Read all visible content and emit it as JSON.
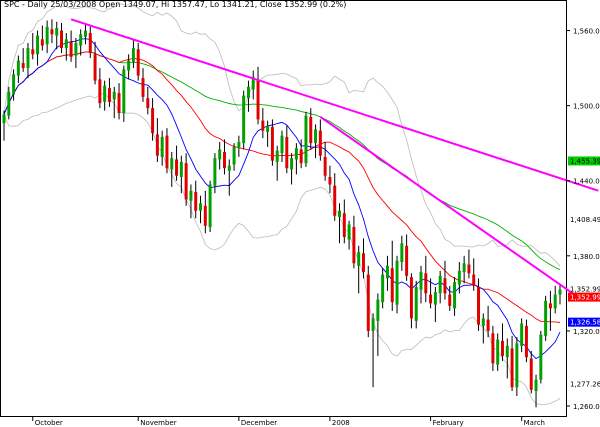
{
  "header": {
    "symbol": "SPC",
    "text": "SPC - Daily 25/03/2008 Open 1349.07, Hi 1357.47, Lo 1341.21, Close 1352.99 (0.2%)"
  },
  "colors": {
    "background": "#ffffff",
    "up_candle": "#00a000",
    "down_candle": "#e00000",
    "wick": "#000000",
    "trendline": "#ff00ff",
    "ma_short": "#0000ff",
    "ma_mid": "#ff0000",
    "ma_long": "#00b000",
    "bands": "#bbbbbb",
    "label_close_bg": "#ff0000",
    "label_ma_long_bg": "#00cc00",
    "label_ma_short_bg": "#0000ff"
  },
  "chart_data": {
    "type": "candlestick",
    "title": "SPC - Daily 25/03/2008 Open 1349.07, Hi 1357.47, Lo 1341.21, Close 1352.99 (0.2%)",
    "x_labels": [
      {
        "label": "October",
        "index": 6
      },
      {
        "label": "November",
        "index": 28
      },
      {
        "label": "December",
        "index": 49
      },
      {
        "label": "2008",
        "index": 68
      },
      {
        "label": "February",
        "index": 89
      },
      {
        "label": "March",
        "index": 108
      }
    ],
    "y_ticks": [
      1560,
      1500,
      1440,
      1380,
      1320,
      1260
    ],
    "ylim": [
      1252,
      1578
    ],
    "grid": false,
    "price_labels": [
      {
        "text": "1,455.39",
        "value": 1455.39,
        "style": "ma_long"
      },
      {
        "text": "1,408.49",
        "value": 1408.49,
        "style": "plain"
      },
      {
        "text": "1,352.99",
        "value": 1352.99,
        "style": "plain"
      },
      {
        "text": "1,352.99",
        "value": 1352.99,
        "style": "close"
      },
      {
        "text": "1,326.58",
        "value": 1326.58,
        "style": "ma_short"
      },
      {
        "text": "1,277.26",
        "value": 1277.26,
        "style": "plain"
      }
    ],
    "trendlines": [
      {
        "x1": 14,
        "y1": 1569,
        "x2": 124,
        "y2": 1432
      },
      {
        "x1": 66,
        "y1": 1491,
        "x2": 119,
        "y2": 1349
      }
    ],
    "candles": [
      [
        1486,
        1496,
        1472,
        1493
      ],
      [
        1492,
        1515,
        1489,
        1511
      ],
      [
        1509,
        1529,
        1504,
        1525
      ],
      [
        1524,
        1540,
        1518,
        1536
      ],
      [
        1534,
        1546,
        1527,
        1530
      ],
      [
        1530,
        1550,
        1522,
        1546
      ],
      [
        1545,
        1558,
        1537,
        1541
      ],
      [
        1541,
        1560,
        1532,
        1556
      ],
      [
        1553,
        1564,
        1544,
        1548
      ],
      [
        1549,
        1568,
        1542,
        1563
      ],
      [
        1561,
        1569,
        1550,
        1557
      ],
      [
        1556,
        1567,
        1545,
        1562
      ],
      [
        1560,
        1566,
        1542,
        1546
      ],
      [
        1546,
        1558,
        1536,
        1553
      ],
      [
        1551,
        1560,
        1535,
        1539
      ],
      [
        1540,
        1554,
        1530,
        1550
      ],
      [
        1548,
        1561,
        1540,
        1557
      ],
      [
        1555,
        1565,
        1549,
        1560
      ],
      [
        1558,
        1563,
        1538,
        1542
      ],
      [
        1541,
        1551,
        1517,
        1520
      ],
      [
        1521,
        1530,
        1498,
        1502
      ],
      [
        1503,
        1520,
        1496,
        1516
      ],
      [
        1514,
        1522,
        1499,
        1503
      ],
      [
        1505,
        1515,
        1490,
        1511
      ],
      [
        1510,
        1518,
        1489,
        1494
      ],
      [
        1494,
        1532,
        1487,
        1529
      ],
      [
        1528,
        1541,
        1521,
        1536
      ],
      [
        1535,
        1552,
        1530,
        1546
      ],
      [
        1545,
        1550,
        1520,
        1524
      ],
      [
        1522,
        1530,
        1503,
        1507
      ],
      [
        1506,
        1515,
        1493,
        1498
      ],
      [
        1498,
        1506,
        1472,
        1478
      ],
      [
        1477,
        1490,
        1455,
        1460
      ],
      [
        1459,
        1480,
        1452,
        1475
      ],
      [
        1476,
        1482,
        1446,
        1450
      ],
      [
        1449,
        1463,
        1435,
        1458
      ],
      [
        1457,
        1468,
        1440,
        1444
      ],
      [
        1443,
        1460,
        1430,
        1455
      ],
      [
        1454,
        1462,
        1420,
        1425
      ],
      [
        1424,
        1437,
        1410,
        1432
      ],
      [
        1431,
        1440,
        1410,
        1416
      ],
      [
        1416,
        1428,
        1406,
        1422
      ],
      [
        1420,
        1432,
        1398,
        1404
      ],
      [
        1403,
        1440,
        1399,
        1437
      ],
      [
        1436,
        1462,
        1430,
        1458
      ],
      [
        1457,
        1471,
        1449,
        1465
      ],
      [
        1463,
        1473,
        1445,
        1450
      ],
      [
        1448,
        1457,
        1428,
        1452
      ],
      [
        1453,
        1470,
        1448,
        1467
      ],
      [
        1466,
        1476,
        1459,
        1471
      ],
      [
        1470,
        1512,
        1465,
        1508
      ],
      [
        1506,
        1520,
        1495,
        1515
      ],
      [
        1513,
        1528,
        1505,
        1523
      ],
      [
        1520,
        1531,
        1485,
        1489
      ],
      [
        1488,
        1498,
        1474,
        1480
      ],
      [
        1479,
        1488,
        1467,
        1484
      ],
      [
        1483,
        1489,
        1452,
        1456
      ],
      [
        1455,
        1468,
        1440,
        1464
      ],
      [
        1462,
        1480,
        1455,
        1476
      ],
      [
        1475,
        1484,
        1446,
        1450
      ],
      [
        1449,
        1462,
        1437,
        1458
      ],
      [
        1457,
        1470,
        1445,
        1466
      ],
      [
        1465,
        1473,
        1450,
        1454
      ],
      [
        1454,
        1495,
        1451,
        1492
      ],
      [
        1491,
        1498,
        1465,
        1470
      ],
      [
        1470,
        1485,
        1458,
        1481
      ],
      [
        1480,
        1489,
        1456,
        1460
      ],
      [
        1459,
        1471,
        1440,
        1444
      ],
      [
        1443,
        1452,
        1430,
        1437
      ],
      [
        1436,
        1446,
        1408,
        1412
      ],
      [
        1411,
        1422,
        1390,
        1416
      ],
      [
        1414,
        1425,
        1390,
        1395
      ],
      [
        1393,
        1408,
        1385,
        1405
      ],
      [
        1403,
        1412,
        1370,
        1374
      ],
      [
        1372,
        1388,
        1350,
        1383
      ],
      [
        1382,
        1394,
        1362,
        1367
      ],
      [
        1365,
        1372,
        1315,
        1320
      ],
      [
        1320,
        1334,
        1275,
        1330
      ],
      [
        1328,
        1350,
        1300,
        1345
      ],
      [
        1343,
        1370,
        1338,
        1365
      ],
      [
        1362,
        1380,
        1352,
        1372
      ],
      [
        1370,
        1392,
        1336,
        1343
      ],
      [
        1341,
        1380,
        1334,
        1376
      ],
      [
        1375,
        1396,
        1368,
        1390
      ],
      [
        1388,
        1397,
        1360,
        1364
      ],
      [
        1363,
        1366,
        1322,
        1330
      ],
      [
        1328,
        1360,
        1322,
        1355
      ],
      [
        1353,
        1372,
        1342,
        1367
      ],
      [
        1366,
        1380,
        1343,
        1350
      ],
      [
        1349,
        1362,
        1338,
        1342
      ],
      [
        1341,
        1355,
        1327,
        1351
      ],
      [
        1350,
        1368,
        1342,
        1364
      ],
      [
        1362,
        1376,
        1345,
        1350
      ],
      [
        1349,
        1356,
        1336,
        1340
      ],
      [
        1338,
        1363,
        1332,
        1359
      ],
      [
        1357,
        1375,
        1350,
        1368
      ],
      [
        1367,
        1380,
        1358,
        1374
      ],
      [
        1373,
        1385,
        1362,
        1366
      ],
      [
        1365,
        1378,
        1352,
        1356
      ],
      [
        1355,
        1362,
        1320,
        1325
      ],
      [
        1324,
        1334,
        1310,
        1330
      ],
      [
        1329,
        1340,
        1315,
        1320
      ],
      [
        1318,
        1324,
        1288,
        1294
      ],
      [
        1293,
        1318,
        1288,
        1313
      ],
      [
        1312,
        1326,
        1296,
        1300
      ],
      [
        1299,
        1314,
        1282,
        1308
      ],
      [
        1306,
        1316,
        1272,
        1275
      ],
      [
        1275,
        1315,
        1268,
        1310
      ],
      [
        1308,
        1330,
        1303,
        1326
      ],
      [
        1324,
        1329,
        1295,
        1299
      ],
      [
        1298,
        1304,
        1270,
        1273
      ],
      [
        1272,
        1285,
        1259,
        1281
      ],
      [
        1281,
        1320,
        1278,
        1317
      ],
      [
        1316,
        1348,
        1312,
        1344
      ],
      [
        1342,
        1352,
        1320,
        1338
      ],
      [
        1338,
        1356,
        1334,
        1349
      ],
      [
        1349.07,
        1357.47,
        1341.21,
        1352.99
      ]
    ]
  }
}
